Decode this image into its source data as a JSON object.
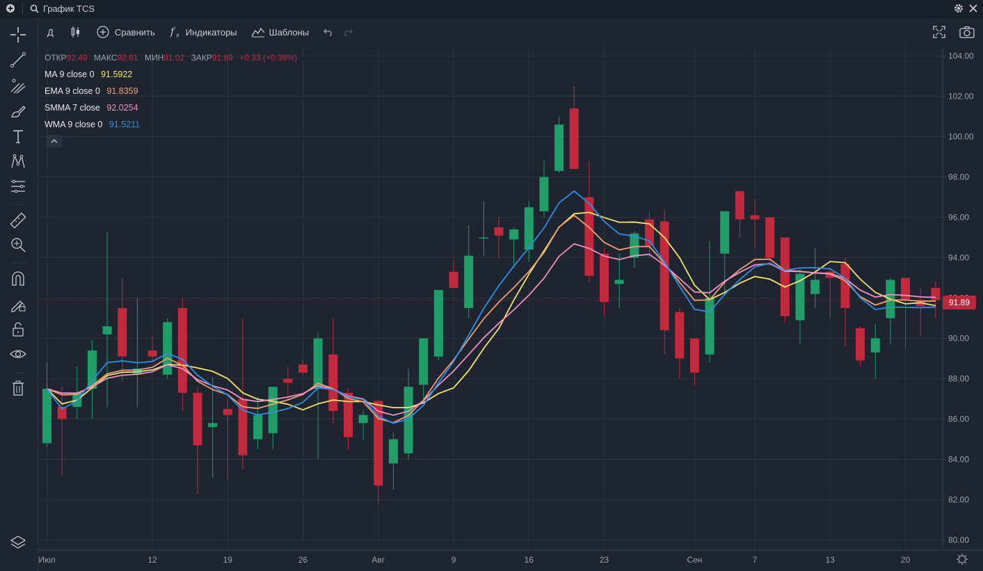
{
  "window": {
    "title": "График TCS"
  },
  "toolbar": {
    "interval": "Д",
    "compare": "Сравнить",
    "indicators": "Индикаторы",
    "templates": "Шаблоны"
  },
  "legend": {
    "open_label": "ОТКР",
    "open": "92.49",
    "high_label": "МАКС",
    "high": "92.81",
    "low_label": "МИН",
    "low": "91.02",
    "close_label": "ЗАКР",
    "close": "91.89",
    "change": "+0.33 (+0.36%)"
  },
  "indicators": [
    {
      "label": "MA 9 close 0",
      "value": "91.5922",
      "color": "#f5e56b"
    },
    {
      "label": "EMA 9 close 0",
      "value": "91.8359",
      "color": "#f0a070"
    },
    {
      "label": "SMMA 7 close",
      "value": "92.0254",
      "color": "#f090c8"
    },
    {
      "label": "WMA 9 close 0",
      "value": "91.5211",
      "color": "#2f8fe8"
    }
  ],
  "last_price": "91.89",
  "colors": {
    "up": "#1f9e6a",
    "down": "#c2293c",
    "grid": "#2b333e",
    "bg": "#1e2530"
  },
  "chart_data": {
    "type": "candlestick",
    "y_ticks": [
      "104.00",
      "102.00",
      "100.00",
      "98.00",
      "96.00",
      "94.00",
      "92.00",
      "90.00",
      "88.00",
      "86.00",
      "84.00",
      "82.00",
      "80.00"
    ],
    "ylim": [
      79.5,
      104.5
    ],
    "x_ticks": [
      {
        "label": "Июл",
        "index": 0
      },
      {
        "label": "12",
        "index": 7
      },
      {
        "label": "19",
        "index": 12
      },
      {
        "label": "26",
        "index": 17
      },
      {
        "label": "Авг",
        "index": 22
      },
      {
        "label": "9",
        "index": 27
      },
      {
        "label": "16",
        "index": 32
      },
      {
        "label": "23",
        "index": 37
      },
      {
        "label": "Сен",
        "index": 43
      },
      {
        "label": "7",
        "index": 47
      },
      {
        "label": "13",
        "index": 52
      },
      {
        "label": "20",
        "index": 57
      }
    ],
    "candles": [
      {
        "o": 84.8,
        "h": 88.8,
        "l": 84.6,
        "c": 87.5
      },
      {
        "o": 86.6,
        "h": 87.6,
        "l": 83.2,
        "c": 86.0
      },
      {
        "o": 86.6,
        "h": 88.6,
        "l": 86.0,
        "c": 87.3
      },
      {
        "o": 87.5,
        "h": 89.9,
        "l": 86.0,
        "c": 89.4
      },
      {
        "o": 90.2,
        "h": 95.3,
        "l": 86.6,
        "c": 90.6
      },
      {
        "o": 91.5,
        "h": 93.0,
        "l": 87.9,
        "c": 89.1
      },
      {
        "o": 88.2,
        "h": 92.0,
        "l": 86.6,
        "c": 88.5
      },
      {
        "o": 89.4,
        "h": 90.1,
        "l": 88.8,
        "c": 89.1
      },
      {
        "o": 88.2,
        "h": 91.0,
        "l": 88.0,
        "c": 90.8
      },
      {
        "o": 91.5,
        "h": 92.0,
        "l": 86.4,
        "c": 87.3
      },
      {
        "o": 87.3,
        "h": 87.6,
        "l": 82.3,
        "c": 84.7
      },
      {
        "o": 85.6,
        "h": 88.1,
        "l": 83.1,
        "c": 85.8
      },
      {
        "o": 86.5,
        "h": 87.0,
        "l": 83.0,
        "c": 86.2
      },
      {
        "o": 87.0,
        "h": 91.0,
        "l": 83.5,
        "c": 84.2
      },
      {
        "o": 85.0,
        "h": 87.1,
        "l": 84.5,
        "c": 86.2
      },
      {
        "o": 85.3,
        "h": 87.6,
        "l": 84.5,
        "c": 87.6
      },
      {
        "o": 88.0,
        "h": 88.6,
        "l": 87.0,
        "c": 87.8
      },
      {
        "o": 88.7,
        "h": 89.0,
        "l": 88.2,
        "c": 88.3
      },
      {
        "o": 87.5,
        "h": 90.3,
        "l": 84.0,
        "c": 90.0
      },
      {
        "o": 89.2,
        "h": 91.0,
        "l": 85.8,
        "c": 86.4
      },
      {
        "o": 87.3,
        "h": 87.5,
        "l": 84.5,
        "c": 85.1
      },
      {
        "o": 85.8,
        "h": 86.4,
        "l": 85.0,
        "c": 86.2
      },
      {
        "o": 86.9,
        "h": 86.9,
        "l": 81.8,
        "c": 82.7
      },
      {
        "o": 83.8,
        "h": 85.3,
        "l": 82.5,
        "c": 85.0
      },
      {
        "o": 84.3,
        "h": 88.5,
        "l": 84.0,
        "c": 87.6
      },
      {
        "o": 87.7,
        "h": 90.0,
        "l": 87.0,
        "c": 90.0
      },
      {
        "o": 89.1,
        "h": 92.4,
        "l": 88.9,
        "c": 92.4
      },
      {
        "o": 93.3,
        "h": 93.9,
        "l": 92.5,
        "c": 92.5
      },
      {
        "o": 91.5,
        "h": 95.6,
        "l": 91.0,
        "c": 94.1
      },
      {
        "o": 95.0,
        "h": 96.8,
        "l": 94.1,
        "c": 95.0
      },
      {
        "o": 95.5,
        "h": 96.0,
        "l": 94.0,
        "c": 95.1
      },
      {
        "o": 94.9,
        "h": 95.5,
        "l": 93.5,
        "c": 95.4
      },
      {
        "o": 94.4,
        "h": 96.8,
        "l": 93.8,
        "c": 96.5
      },
      {
        "o": 96.3,
        "h": 98.8,
        "l": 96.0,
        "c": 98.0
      },
      {
        "o": 98.3,
        "h": 101.0,
        "l": 98.2,
        "c": 100.6
      },
      {
        "o": 101.4,
        "h": 102.5,
        "l": 98.4,
        "c": 98.4
      },
      {
        "o": 97.0,
        "h": 98.8,
        "l": 92.8,
        "c": 93.1
      },
      {
        "o": 94.2,
        "h": 94.5,
        "l": 91.1,
        "c": 91.8
      },
      {
        "o": 92.7,
        "h": 94.2,
        "l": 91.5,
        "c": 92.9
      },
      {
        "o": 94.0,
        "h": 95.3,
        "l": 93.5,
        "c": 95.2
      },
      {
        "o": 95.9,
        "h": 96.3,
        "l": 94.0,
        "c": 94.6
      },
      {
        "o": 95.8,
        "h": 96.4,
        "l": 89.2,
        "c": 90.4
      },
      {
        "o": 91.3,
        "h": 91.5,
        "l": 88.0,
        "c": 89.0
      },
      {
        "o": 90.0,
        "h": 90.0,
        "l": 87.7,
        "c": 88.3
      },
      {
        "o": 89.2,
        "h": 94.8,
        "l": 88.8,
        "c": 92.0
      },
      {
        "o": 94.2,
        "h": 96.3,
        "l": 92.1,
        "c": 96.3
      },
      {
        "o": 97.3,
        "h": 97.3,
        "l": 95.0,
        "c": 95.9
      },
      {
        "o": 96.1,
        "h": 96.9,
        "l": 94.5,
        "c": 95.9
      },
      {
        "o": 96.0,
        "h": 96.0,
        "l": 93.6,
        "c": 94.0
      },
      {
        "o": 95.0,
        "h": 95.0,
        "l": 90.8,
        "c": 91.1
      },
      {
        "o": 90.9,
        "h": 93.5,
        "l": 89.7,
        "c": 93.2
      },
      {
        "o": 92.2,
        "h": 94.5,
        "l": 91.5,
        "c": 92.9
      },
      {
        "o": 93.3,
        "h": 93.5,
        "l": 91.0,
        "c": 93.0
      },
      {
        "o": 93.7,
        "h": 94.0,
        "l": 89.6,
        "c": 91.5
      },
      {
        "o": 90.5,
        "h": 90.6,
        "l": 88.6,
        "c": 88.9
      },
      {
        "o": 89.3,
        "h": 90.7,
        "l": 88.0,
        "c": 90.0
      },
      {
        "o": 91.0,
        "h": 93.0,
        "l": 89.7,
        "c": 92.9
      },
      {
        "o": 93.0,
        "h": 93.0,
        "l": 89.5,
        "c": 91.9
      },
      {
        "o": 91.9,
        "h": 92.5,
        "l": 90.1,
        "c": 91.6
      },
      {
        "o": 92.5,
        "h": 92.8,
        "l": 91.0,
        "c": 91.9
      }
    ]
  }
}
